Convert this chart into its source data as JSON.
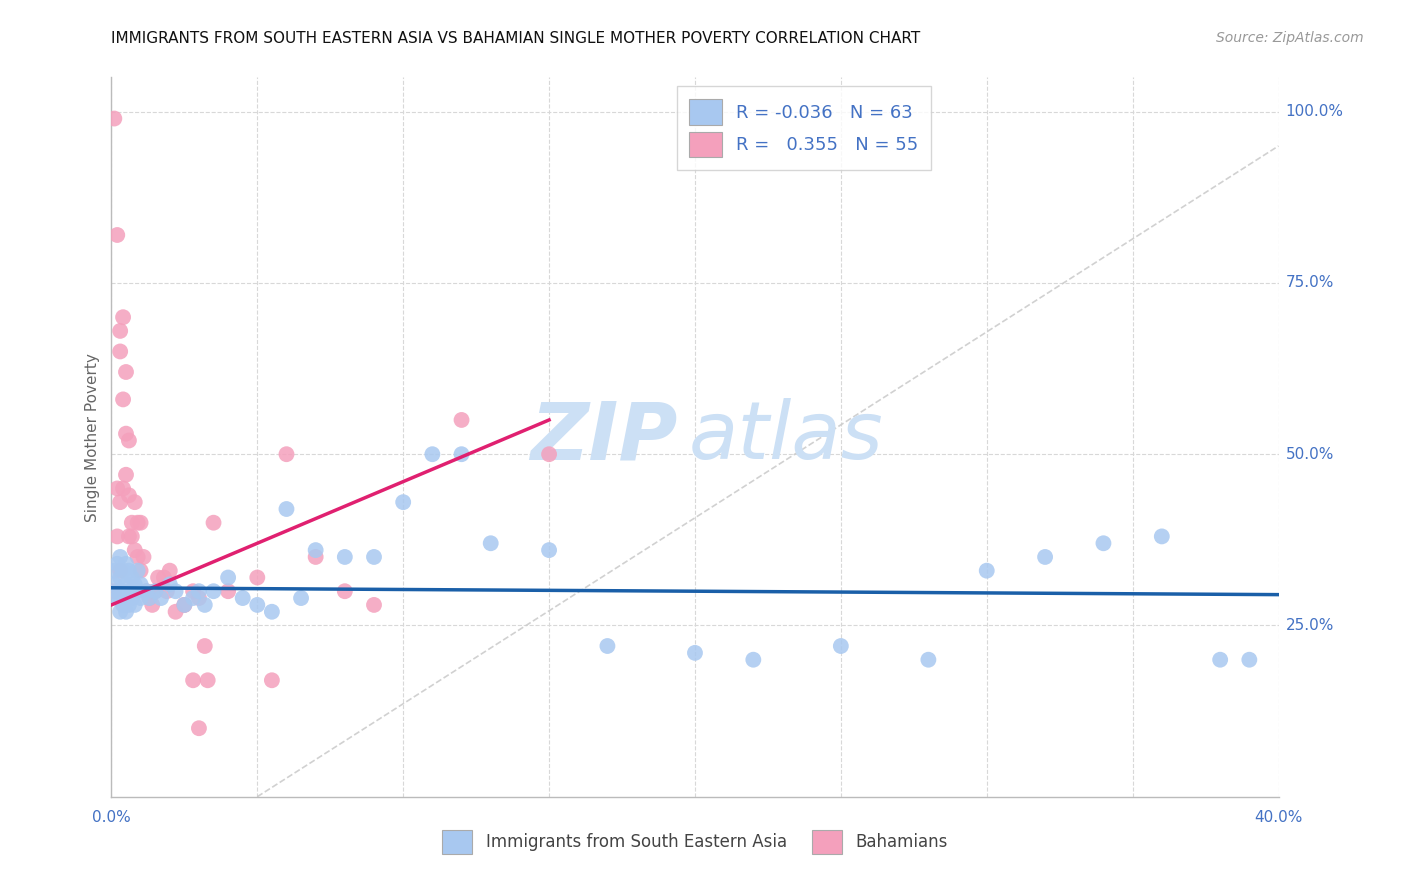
{
  "title": "IMMIGRANTS FROM SOUTH EASTERN ASIA VS BAHAMIAN SINGLE MOTHER POVERTY CORRELATION CHART",
  "source": "Source: ZipAtlas.com",
  "ylabel": "Single Mother Poverty",
  "xlim": [
    0.0,
    0.4
  ],
  "ylim": [
    0.0,
    1.05
  ],
  "legend_blue_R": "-0.036",
  "legend_blue_N": "63",
  "legend_pink_R": "0.355",
  "legend_pink_N": "55",
  "blue_color": "#a8c8f0",
  "pink_color": "#f4a0bc",
  "blue_line_color": "#1a5fa8",
  "pink_line_color": "#e02070",
  "diag_color": "#cccccc",
  "grid_color": "#d8d8d8",
  "right_label_color": "#4472c4",
  "ylabel_right_vals": [
    1.0,
    0.75,
    0.5,
    0.25
  ],
  "ylabel_right_labels": [
    "100.0%",
    "75.0%",
    "50.0%",
    "25.0%"
  ],
  "blue_scatter_x": [
    0.001,
    0.001,
    0.002,
    0.002,
    0.002,
    0.003,
    0.003,
    0.003,
    0.003,
    0.004,
    0.004,
    0.004,
    0.005,
    0.005,
    0.005,
    0.005,
    0.006,
    0.006,
    0.006,
    0.007,
    0.007,
    0.008,
    0.008,
    0.009,
    0.009,
    0.01,
    0.01,
    0.012,
    0.013,
    0.015,
    0.017,
    0.02,
    0.022,
    0.025,
    0.028,
    0.03,
    0.032,
    0.035,
    0.04,
    0.045,
    0.05,
    0.055,
    0.06,
    0.065,
    0.07,
    0.08,
    0.09,
    0.1,
    0.11,
    0.12,
    0.13,
    0.15,
    0.17,
    0.2,
    0.22,
    0.25,
    0.28,
    0.3,
    0.32,
    0.34,
    0.36,
    0.38,
    0.39
  ],
  "blue_scatter_y": [
    0.33,
    0.31,
    0.34,
    0.3,
    0.29,
    0.35,
    0.32,
    0.29,
    0.27,
    0.33,
    0.3,
    0.28,
    0.34,
    0.31,
    0.29,
    0.27,
    0.33,
    0.3,
    0.28,
    0.32,
    0.29,
    0.31,
    0.28,
    0.33,
    0.3,
    0.31,
    0.29,
    0.3,
    0.29,
    0.3,
    0.29,
    0.31,
    0.3,
    0.28,
    0.29,
    0.3,
    0.28,
    0.3,
    0.32,
    0.29,
    0.28,
    0.27,
    0.42,
    0.29,
    0.36,
    0.35,
    0.35,
    0.43,
    0.5,
    0.5,
    0.37,
    0.36,
    0.22,
    0.21,
    0.2,
    0.22,
    0.2,
    0.33,
    0.35,
    0.37,
    0.38,
    0.2,
    0.2
  ],
  "pink_scatter_x": [
    0.001,
    0.001,
    0.002,
    0.002,
    0.002,
    0.003,
    0.003,
    0.003,
    0.003,
    0.004,
    0.004,
    0.004,
    0.005,
    0.005,
    0.005,
    0.006,
    0.006,
    0.006,
    0.007,
    0.007,
    0.008,
    0.008,
    0.009,
    0.009,
    0.01,
    0.01,
    0.011,
    0.012,
    0.013,
    0.014,
    0.015,
    0.016,
    0.018,
    0.019,
    0.02,
    0.022,
    0.025,
    0.028,
    0.03,
    0.032,
    0.035,
    0.04,
    0.05,
    0.055,
    0.06,
    0.07,
    0.08,
    0.09,
    0.12,
    0.15,
    0.025,
    0.028,
    0.03,
    0.033,
    0.015
  ],
  "pink_scatter_y": [
    0.99,
    0.3,
    0.82,
    0.45,
    0.38,
    0.68,
    0.65,
    0.43,
    0.33,
    0.7,
    0.58,
    0.45,
    0.62,
    0.53,
    0.47,
    0.52,
    0.44,
    0.38,
    0.4,
    0.38,
    0.36,
    0.43,
    0.4,
    0.35,
    0.33,
    0.4,
    0.35,
    0.3,
    0.29,
    0.28,
    0.3,
    0.32,
    0.32,
    0.3,
    0.33,
    0.27,
    0.28,
    0.3,
    0.29,
    0.22,
    0.4,
    0.3,
    0.32,
    0.17,
    0.5,
    0.35,
    0.3,
    0.28,
    0.55,
    0.5,
    0.28,
    0.17,
    0.1,
    0.17,
    0.3
  ],
  "blue_line_x": [
    0.0,
    0.4
  ],
  "blue_line_y": [
    0.305,
    0.295
  ],
  "pink_line_x": [
    0.0,
    0.15
  ],
  "pink_line_y": [
    0.28,
    0.55
  ],
  "diag_line_x": [
    0.05,
    0.4
  ],
  "diag_line_y": [
    0.0,
    0.95
  ]
}
